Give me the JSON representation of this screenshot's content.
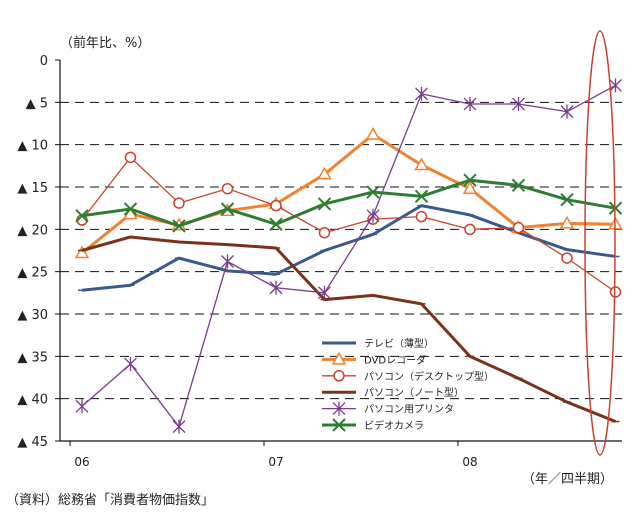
{
  "chart_data": {
    "type": "line",
    "ylabel": "（前年比、%）",
    "xlabel": "（年／四半期）",
    "source": "（資料）総務省「消費者物価指数」",
    "yticks": [
      "0",
      "▲ 5",
      "▲ 10",
      "▲ 15",
      "▲ 20",
      "▲ 25",
      "▲ 30",
      "▲ 35",
      "▲ 40",
      "▲ 45"
    ],
    "ylim": [
      0,
      45
    ],
    "y_inverted": true,
    "xticks": [
      {
        "label": "06",
        "index": 0
      },
      {
        "label": "07",
        "index": 4
      },
      {
        "label": "08",
        "index": 8
      }
    ],
    "categories": [
      "06Q1",
      "06Q2",
      "06Q3",
      "06Q4",
      "07Q1",
      "07Q2",
      "07Q3",
      "07Q4",
      "08Q1",
      "08Q2",
      "08Q3",
      "08Q4"
    ],
    "series": [
      {
        "name": "テレビ（薄型）",
        "color": "#3a5a8c",
        "marker": "none",
        "values": [
          27.2,
          26.6,
          23.4,
          24.9,
          25.3,
          22.5,
          20.6,
          17.2,
          18.3,
          20.4,
          22.4,
          23.2
        ]
      },
      {
        "name": "DVDレコーダ",
        "color": "#f08232",
        "marker": "triangle",
        "values": [
          22.8,
          18.2,
          19.5,
          17.8,
          17.0,
          13.5,
          8.8,
          12.4,
          15.2,
          19.8,
          19.3,
          19.4
        ]
      },
      {
        "name": "パソコン（デスクトップ型）",
        "color": "#c8432f",
        "marker": "circle",
        "values": [
          18.9,
          11.5,
          16.9,
          15.2,
          17.2,
          20.4,
          18.8,
          18.5,
          20.0,
          19.8,
          23.4,
          27.4
        ]
      },
      {
        "name": "パソコン（ノート型）",
        "color": "#7a3318",
        "marker": "none",
        "values": [
          22.5,
          20.9,
          21.5,
          21.8,
          22.2,
          28.3,
          27.8,
          28.8,
          35.0,
          37.6,
          40.4,
          42.7
        ]
      },
      {
        "name": "パソコン用プリンタ",
        "color": "#7a3b8c",
        "marker": "star",
        "values": [
          40.9,
          35.9,
          43.3,
          23.8,
          26.9,
          27.5,
          18.4,
          4.0,
          5.2,
          5.2,
          6.1,
          3.0
        ]
      },
      {
        "name": "ビデオカメラ",
        "color": "#2e7d32",
        "marker": "x",
        "values": [
          18.4,
          17.6,
          19.6,
          17.6,
          19.4,
          17.0,
          15.6,
          16.1,
          14.2,
          14.8,
          16.5,
          17.5
        ]
      }
    ]
  }
}
